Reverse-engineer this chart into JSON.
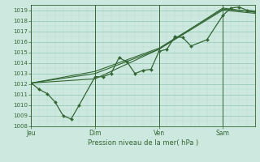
{
  "bg_color": "#cce8df",
  "grid_color_major": "#99ccbb",
  "grid_color_minor": "#bbddcc",
  "line_color": "#336633",
  "ylabel": "Pression niveau de la mer( hPa )",
  "ylim": [
    1008,
    1019.5
  ],
  "yticks": [
    1008,
    1009,
    1010,
    1011,
    1012,
    1013,
    1014,
    1015,
    1016,
    1017,
    1018,
    1019
  ],
  "xtick_labels": [
    "Jeu",
    "Dim",
    "Ven",
    "Sam"
  ],
  "xtick_positions": [
    0,
    48,
    96,
    144
  ],
  "total_hours": 168,
  "series0_x": [
    0,
    6,
    12,
    18,
    24,
    30,
    36,
    48,
    54,
    60,
    66,
    72,
    78,
    84,
    90,
    96,
    102,
    108,
    114,
    120,
    132,
    144,
    150,
    156,
    162,
    168
  ],
  "series0_y": [
    1012.1,
    1011.5,
    1011.1,
    1010.3,
    1009.0,
    1008.7,
    1010.0,
    1012.7,
    1012.7,
    1013.0,
    1014.5,
    1014.1,
    1013.0,
    1013.3,
    1013.4,
    1015.1,
    1015.3,
    1016.5,
    1016.4,
    1015.6,
    1016.2,
    1018.5,
    1019.2,
    1019.3,
    1019.0,
    1018.9
  ],
  "series1_x": [
    0,
    48,
    96,
    144,
    168
  ],
  "series1_y": [
    1012.1,
    1012.5,
    1015.3,
    1019.2,
    1018.8
  ],
  "series2_x": [
    0,
    48,
    96,
    144,
    168
  ],
  "series2_y": [
    1012.1,
    1013.0,
    1015.3,
    1019.0,
    1018.7
  ],
  "series3_x": [
    0,
    48,
    96,
    144,
    168
  ],
  "series3_y": [
    1012.1,
    1013.2,
    1015.4,
    1019.1,
    1018.85
  ]
}
